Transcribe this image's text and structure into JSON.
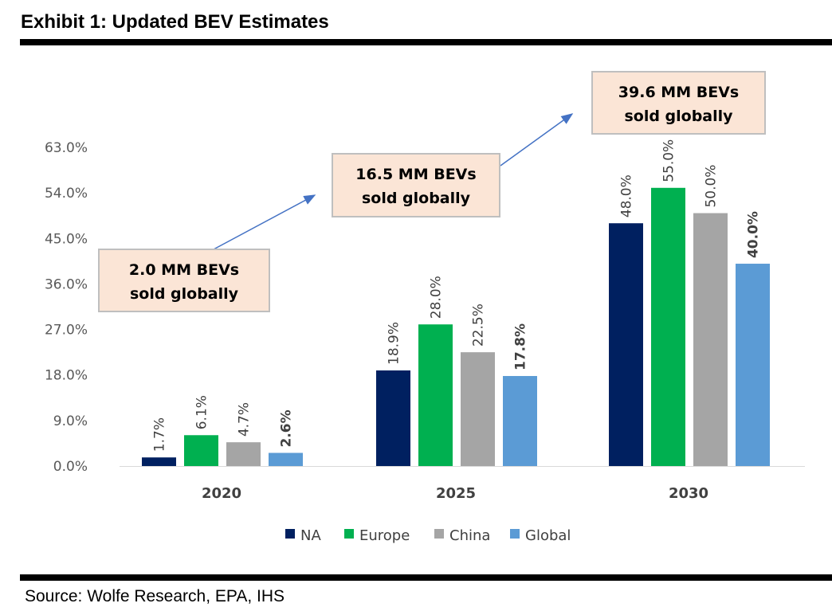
{
  "title": "Exhibit 1: Updated BEV Estimates",
  "source": "Source: Wolfe Research, EPA, IHS",
  "chart_data": {
    "type": "bar",
    "categories": [
      "2020",
      "2025",
      "2030"
    ],
    "series": [
      {
        "name": "NA",
        "color": "#002060",
        "values": [
          1.7,
          18.9,
          48.0
        ],
        "labels": [
          "1.7%",
          "18.9%",
          "48.0%"
        ],
        "bold": false
      },
      {
        "name": "Europe",
        "color": "#00B050",
        "values": [
          6.1,
          28.0,
          55.0
        ],
        "labels": [
          "6.1%",
          "28.0%",
          "55.0%"
        ],
        "bold": false
      },
      {
        "name": "China",
        "color": "#A5A5A5",
        "values": [
          4.7,
          22.5,
          50.0
        ],
        "labels": [
          "4.7%",
          "22.5%",
          "50.0%"
        ],
        "bold": false
      },
      {
        "name": "Global",
        "color": "#5B9BD5",
        "values": [
          2.6,
          17.8,
          40.0
        ],
        "labels": [
          "2.6%",
          "17.8%",
          "40.0%"
        ],
        "bold": true
      }
    ],
    "ylim": [
      0,
      63
    ],
    "yticks": [
      0,
      9,
      18,
      27,
      36,
      45,
      54,
      63
    ],
    "ytick_labels": [
      "0.0%",
      "9.0%",
      "18.0%",
      "27.0%",
      "36.0%",
      "45.0%",
      "54.0%",
      "63.0%"
    ],
    "grid": false,
    "legend_position": "bottom",
    "annotations": [
      {
        "line1": "2.0 MM BEVs",
        "line2": "sold globally"
      },
      {
        "line1": "16.5 MM BEVs",
        "line2": "sold globally"
      },
      {
        "line1": "39.6 MM BEVs",
        "line2": "sold globally"
      }
    ],
    "arrow_color": "#4472C4",
    "callout_fill": "#FBE5D6"
  }
}
